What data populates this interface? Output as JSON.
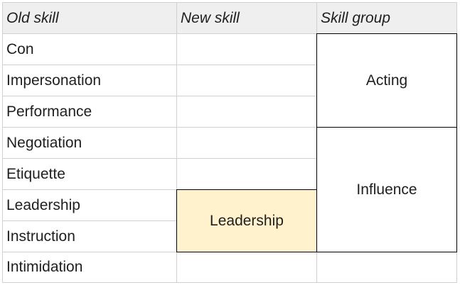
{
  "table": {
    "headers": [
      "Old skill",
      "New skill",
      "Skill group"
    ],
    "old_skills": [
      "Con",
      "Impersonation",
      "Performance",
      "Negotiation",
      "Etiquette",
      "Leadership",
      "Instruction",
      "Intimidation"
    ],
    "new_skill_merged": "Leadership",
    "skill_groups": [
      "Acting",
      "Influence"
    ]
  },
  "colors": {
    "header_bg": "#efefef",
    "highlight_bg": "#fff2cc",
    "grid": "#d0d0d0",
    "merged_border": "#000000"
  }
}
